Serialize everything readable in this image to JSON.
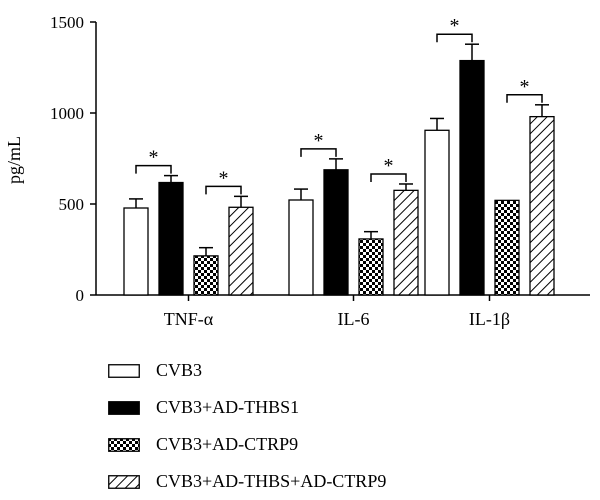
{
  "chart_data": {
    "type": "bar",
    "ylabel": "pg/mL",
    "ylim": [
      0,
      1500
    ],
    "yticks": [
      0,
      500,
      1000,
      1500
    ],
    "categories": [
      "TNF-α",
      "IL-6",
      "IL-1β"
    ],
    "series": [
      {
        "name": "CVB3",
        "values": [
          478,
          522,
          905
        ],
        "errors": [
          50,
          60,
          65
        ],
        "fill": "#ffffff",
        "pattern": "none"
      },
      {
        "name": "CVB3+AD-THBS1",
        "values": [
          618,
          688,
          1288
        ],
        "errors": [
          38,
          60,
          90
        ],
        "fill": "#000000",
        "pattern": "solid"
      },
      {
        "name": "CVB3+AD-CTRP9",
        "values": [
          215,
          308,
          520
        ],
        "errors": [
          45,
          40,
          0
        ],
        "fill": "#ffffff",
        "pattern": "checker"
      },
      {
        "name": "CVB3+AD-THBS+AD-CTRP9",
        "values": [
          482,
          575,
          980
        ],
        "errors": [
          60,
          35,
          65
        ],
        "fill": "#ffffff",
        "pattern": "hatch"
      }
    ],
    "significance": [
      {
        "category": 0,
        "pair": [
          0,
          1
        ],
        "label": "*"
      },
      {
        "category": 0,
        "pair": [
          2,
          3
        ],
        "label": "*"
      },
      {
        "category": 1,
        "pair": [
          0,
          1
        ],
        "label": "*"
      },
      {
        "category": 1,
        "pair": [
          2,
          3
        ],
        "label": "*"
      },
      {
        "category": 2,
        "pair": [
          0,
          1
        ],
        "label": "*"
      },
      {
        "category": 2,
        "pair": [
          2,
          3
        ],
        "label": "*"
      }
    ],
    "grid": false,
    "legend_position": "bottom"
  }
}
